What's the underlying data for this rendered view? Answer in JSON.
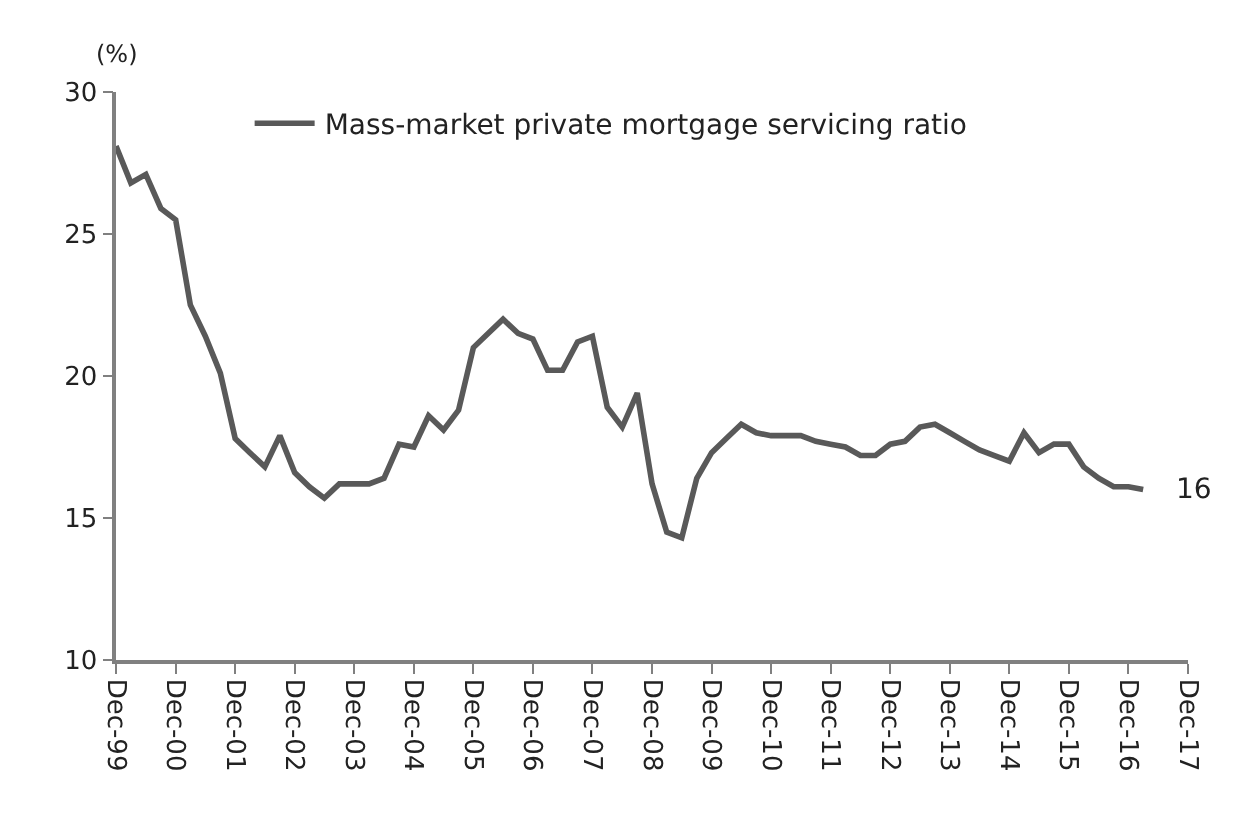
{
  "chart_data": {
    "type": "line",
    "ylabel": "(%)",
    "x": [
      "1999-12",
      "2000-03",
      "2000-06",
      "2000-09",
      "2000-12",
      "2001-03",
      "2001-06",
      "2001-09",
      "2001-12",
      "2002-03",
      "2002-06",
      "2002-09",
      "2002-12",
      "2003-03",
      "2003-06",
      "2003-09",
      "2003-12",
      "2004-03",
      "2004-06",
      "2004-09",
      "2004-12",
      "2005-03",
      "2005-06",
      "2005-09",
      "2005-12",
      "2006-03",
      "2006-06",
      "2006-09",
      "2006-12",
      "2007-03",
      "2007-06",
      "2007-09",
      "2007-12",
      "2008-03",
      "2008-06",
      "2008-09",
      "2008-12",
      "2009-03",
      "2009-06",
      "2009-09",
      "2009-12",
      "2010-03",
      "2010-06",
      "2010-09",
      "2010-12",
      "2011-03",
      "2011-06",
      "2011-09",
      "2011-12",
      "2012-03",
      "2012-06",
      "2012-09",
      "2012-12",
      "2013-03",
      "2013-06",
      "2013-09",
      "2013-12",
      "2014-03",
      "2014-06",
      "2014-09",
      "2014-12",
      "2015-03",
      "2015-06",
      "2015-09",
      "2015-12",
      "2016-03",
      "2016-06",
      "2016-09",
      "2016-12",
      "2017-03"
    ],
    "series": [
      {
        "name": "Mass-market private mortgage servicing ratio",
        "color": "#595959",
        "values": [
          28.1,
          26.8,
          27.1,
          25.9,
          25.5,
          22.5,
          21.4,
          20.1,
          17.8,
          17.3,
          16.8,
          17.9,
          16.6,
          16.1,
          15.7,
          16.2,
          16.2,
          16.2,
          16.4,
          17.6,
          17.5,
          18.6,
          18.1,
          18.8,
          21.0,
          21.5,
          22.0,
          21.5,
          21.3,
          20.2,
          20.2,
          21.2,
          21.4,
          18.9,
          18.2,
          19.4,
          16.2,
          14.5,
          14.3,
          16.4,
          17.3,
          17.8,
          18.3,
          18.0,
          17.9,
          17.9,
          17.9,
          17.7,
          17.6,
          17.5,
          17.2,
          17.2,
          17.6,
          17.7,
          18.2,
          18.3,
          18.0,
          17.7,
          17.4,
          17.2,
          17.0,
          18.0,
          17.3,
          17.6,
          17.6,
          16.8,
          16.4,
          16.1,
          16.1,
          16.0
        ]
      }
    ],
    "annotations": [
      {
        "text": "16",
        "x": "2017-03",
        "y": 16.0
      }
    ],
    "ylim": [
      10,
      30
    ],
    "yticks": [
      10,
      15,
      20,
      25,
      30
    ],
    "xlim": [
      "1999-12",
      "2017-12"
    ],
    "xticks": [
      {
        "value": "1999-12",
        "label": "Dec-99"
      },
      {
        "value": "2000-12",
        "label": "Dec-00"
      },
      {
        "value": "2001-12",
        "label": "Dec-01"
      },
      {
        "value": "2002-12",
        "label": "Dec-02"
      },
      {
        "value": "2003-12",
        "label": "Dec-03"
      },
      {
        "value": "2004-12",
        "label": "Dec-04"
      },
      {
        "value": "2005-12",
        "label": "Dec-05"
      },
      {
        "value": "2006-12",
        "label": "Dec-06"
      },
      {
        "value": "2007-12",
        "label": "Dec-07"
      },
      {
        "value": "2008-12",
        "label": "Dec-08"
      },
      {
        "value": "2009-12",
        "label": "Dec-09"
      },
      {
        "value": "2010-12",
        "label": "Dec-10"
      },
      {
        "value": "2011-12",
        "label": "Dec-11"
      },
      {
        "value": "2012-12",
        "label": "Dec-12"
      },
      {
        "value": "2013-12",
        "label": "Dec-13"
      },
      {
        "value": "2014-12",
        "label": "Dec-14"
      },
      {
        "value": "2015-12",
        "label": "Dec-15"
      },
      {
        "value": "2016-12",
        "label": "Dec-16"
      },
      {
        "value": "2017-12",
        "label": "Dec-17"
      }
    ],
    "legend": "top",
    "marker": "none",
    "line_style": "solid"
  }
}
